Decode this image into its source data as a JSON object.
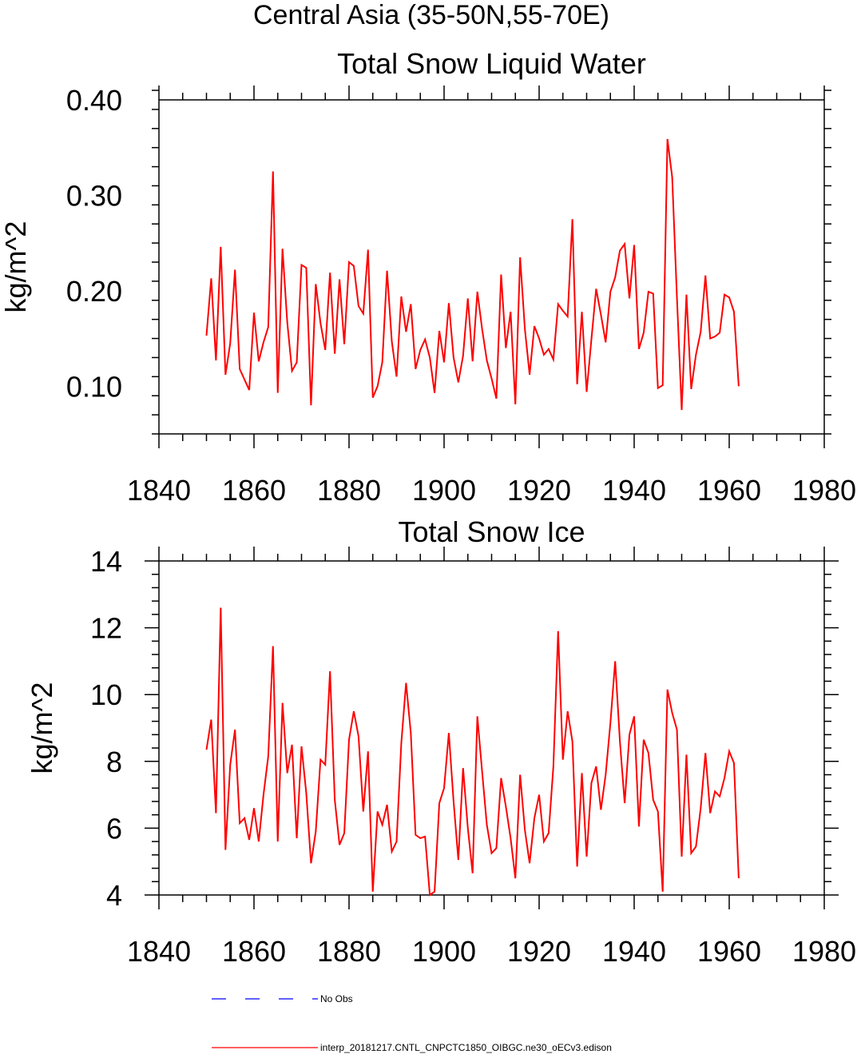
{
  "figure": {
    "title": "Central Asia (35-50N,55-70E)"
  },
  "chart_data": [
    {
      "type": "line",
      "title": "Total Snow Liquid Water",
      "xlabel": "",
      "ylabel": "kg/m^2",
      "xlim": [
        1840,
        1980
      ],
      "ylim": [
        0.05,
        0.4
      ],
      "xticks": [
        1840,
        1860,
        1880,
        1900,
        1920,
        1940,
        1960,
        1980
      ],
      "xtick_labels": [
        "1840",
        "1860",
        "1880",
        "1900",
        "1920",
        "1940",
        "1960",
        "1980"
      ],
      "yticks": [
        0.1,
        0.2,
        0.3,
        0.4
      ],
      "ytick_labels": [
        "0.10",
        "0.20",
        "0.30",
        "0.40"
      ],
      "series": [
        {
          "name": "interp_20181217.CNTL_CNPCTC1850_OIBGC.ne30_oECv3.edison",
          "color": "#ff0000",
          "x_start": 1850,
          "values": [
            0.153,
            0.213,
            0.127,
            0.246,
            0.112,
            0.145,
            0.222,
            0.118,
            0.107,
            0.096,
            0.177,
            0.126,
            0.146,
            0.162,
            0.325,
            0.093,
            0.244,
            0.167,
            0.116,
            0.125,
            0.227,
            0.224,
            0.08,
            0.207,
            0.166,
            0.138,
            0.219,
            0.134,
            0.212,
            0.144,
            0.23,
            0.226,
            0.184,
            0.176,
            0.243,
            0.088,
            0.1,
            0.125,
            0.221,
            0.147,
            0.11,
            0.194,
            0.157,
            0.186,
            0.118,
            0.138,
            0.149,
            0.13,
            0.093,
            0.158,
            0.125,
            0.187,
            0.13,
            0.104,
            0.132,
            0.192,
            0.126,
            0.199,
            0.16,
            0.127,
            0.108,
            0.087,
            0.217,
            0.14,
            0.178,
            0.081,
            0.235,
            0.16,
            0.112,
            0.163,
            0.15,
            0.133,
            0.139,
            0.128,
            0.186,
            0.179,
            0.173,
            0.275,
            0.102,
            0.178,
            0.094,
            0.149,
            0.202,
            0.175,
            0.146,
            0.199,
            0.214,
            0.242,
            0.249,
            0.192,
            0.248,
            0.139,
            0.156,
            0.199,
            0.197,
            0.098,
            0.101,
            0.359,
            0.319,
            0.193,
            0.075,
            0.196,
            0.097,
            0.133,
            0.157,
            0.216,
            0.15,
            0.152,
            0.156,
            0.196,
            0.193,
            0.178,
            0.1
          ]
        }
      ]
    },
    {
      "type": "line",
      "title": "Total Snow Ice",
      "xlabel": "",
      "ylabel": "kg/m^2",
      "xlim": [
        1840,
        1980
      ],
      "ylim": [
        4,
        14
      ],
      "xticks": [
        1840,
        1860,
        1880,
        1900,
        1920,
        1940,
        1960,
        1980
      ],
      "xtick_labels": [
        "1840",
        "1860",
        "1880",
        "1900",
        "1920",
        "1940",
        "1960",
        "1980"
      ],
      "yticks": [
        4,
        6,
        8,
        10,
        12,
        14
      ],
      "ytick_labels": [
        "4",
        "6",
        "8",
        "10",
        "12",
        "14"
      ],
      "series": [
        {
          "name": "interp_20181217.CNTL_CNPCTC1850_OIBGC.ne30_oECv3.edison",
          "color": "#ff0000",
          "x_start": 1850,
          "values": [
            8.35,
            9.25,
            6.45,
            12.6,
            5.35,
            7.9,
            8.95,
            6.15,
            6.3,
            5.65,
            6.6,
            5.6,
            7.0,
            8.15,
            11.45,
            5.6,
            9.75,
            7.65,
            8.5,
            5.7,
            8.45,
            7.05,
            4.95,
            5.9,
            8.05,
            7.9,
            10.7,
            6.85,
            5.5,
            5.85,
            8.65,
            9.5,
            8.75,
            6.5,
            8.3,
            4.1,
            6.5,
            6.1,
            6.7,
            5.3,
            5.6,
            8.55,
            10.35,
            8.85,
            5.8,
            5.7,
            5.75,
            4.0,
            4.1,
            6.75,
            7.2,
            8.85,
            6.8,
            5.05,
            7.8,
            6.0,
            4.65,
            9.35,
            7.7,
            6.1,
            5.25,
            5.4,
            7.5,
            6.65,
            5.7,
            4.5,
            7.6,
            5.95,
            4.95,
            6.3,
            7.0,
            5.6,
            5.85,
            7.85,
            11.9,
            8.05,
            9.5,
            8.6,
            4.85,
            7.65,
            5.15,
            7.35,
            7.85,
            6.55,
            7.6,
            9.15,
            11.0,
            8.6,
            6.75,
            8.8,
            9.35,
            6.05,
            8.65,
            8.25,
            6.85,
            6.5,
            4.1,
            10.15,
            9.45,
            8.95,
            5.15,
            8.2,
            5.25,
            5.45,
            6.6,
            8.25,
            6.45,
            7.1,
            6.95,
            7.5,
            8.3,
            7.95,
            4.5
          ]
        }
      ]
    }
  ],
  "legend": {
    "items": [
      {
        "label": "No Obs",
        "color": "#0000ff",
        "style": "dashed"
      },
      {
        "label": "interp_20181217.CNTL_CNPCTC1850_OIBGC.ne30_oECv3.edison",
        "color": "#ff0000",
        "style": "solid"
      }
    ]
  }
}
